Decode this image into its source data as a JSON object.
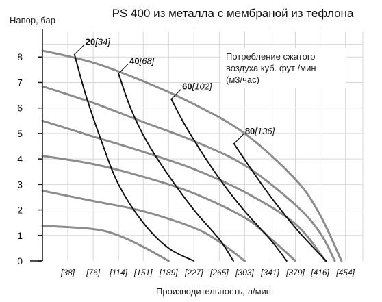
{
  "chart_data": {
    "type": "line",
    "title": "PS 400 из металла с мембраной из тефлона",
    "ylabel": "Напор, бар",
    "xlabel": "Производительность, л/мин",
    "ylim": [
      0,
      9
    ],
    "xlim": [
      0,
      480
    ],
    "grid": true,
    "yticks": [
      0,
      1,
      2,
      3,
      4,
      5,
      6,
      7,
      8
    ],
    "x_tick_values": [
      38,
      76,
      114,
      151,
      189,
      227,
      265,
      303,
      341,
      379,
      416,
      454
    ],
    "x_tick_labels": [
      "[38]",
      "[76]",
      "[114]",
      "[151]",
      "[189]",
      "[227]",
      "[265]",
      "[303]",
      "[341]",
      "[379]",
      "[416]",
      "[454]"
    ],
    "note_lines": [
      "Потребление сжатого",
      "воздуха куб. фут /мин",
      "(м3/час)"
    ],
    "pressure_curves": [
      {
        "points": [
          [
            0,
            8.25
          ],
          [
            76,
            7.78
          ],
          [
            151,
            7.05
          ],
          [
            227,
            6.15
          ],
          [
            303,
            5.0
          ],
          [
            379,
            3.2
          ],
          [
            416,
            1.8
          ],
          [
            448,
            0
          ]
        ]
      },
      {
        "points": [
          [
            0,
            6.85
          ],
          [
            76,
            6.2
          ],
          [
            151,
            5.45
          ],
          [
            227,
            4.7
          ],
          [
            303,
            3.75
          ],
          [
            379,
            2.2
          ],
          [
            416,
            1.1
          ],
          [
            438,
            0
          ]
        ]
      },
      {
        "points": [
          [
            0,
            5.5
          ],
          [
            76,
            4.88
          ],
          [
            151,
            4.28
          ],
          [
            227,
            3.6
          ],
          [
            303,
            2.7
          ],
          [
            379,
            1.45
          ],
          [
            424,
            0
          ]
        ]
      },
      {
        "points": [
          [
            0,
            4.12
          ],
          [
            76,
            3.8
          ],
          [
            151,
            3.3
          ],
          [
            227,
            2.65
          ],
          [
            303,
            1.7
          ],
          [
            341,
            0.9
          ],
          [
            379,
            0
          ]
        ]
      },
      {
        "points": [
          [
            0,
            2.75
          ],
          [
            76,
            2.35
          ],
          [
            151,
            1.95
          ],
          [
            227,
            1.3
          ],
          [
            265,
            0.75
          ],
          [
            303,
            0
          ]
        ]
      },
      {
        "points": [
          [
            0,
            1.38
          ],
          [
            76,
            1.25
          ],
          [
            114,
            1.0
          ],
          [
            151,
            0.55
          ],
          [
            189,
            0
          ]
        ]
      }
    ],
    "air_curves": [
      {
        "label_flow": "20",
        "label_m3": "[34]",
        "points": [
          [
            48,
            8.1
          ],
          [
            65,
            6.5
          ],
          [
            87,
            4.8
          ],
          [
            114,
            3.0
          ],
          [
            151,
            1.5
          ],
          [
            189,
            0.5
          ],
          [
            227,
            0
          ]
        ]
      },
      {
        "label_flow": "40",
        "label_m3": "[68]",
        "points": [
          [
            114,
            7.35
          ],
          [
            132,
            6.0
          ],
          [
            156,
            4.7
          ],
          [
            189,
            3.35
          ],
          [
            227,
            2.0
          ],
          [
            265,
            0.85
          ],
          [
            286,
            0
          ]
        ]
      },
      {
        "label_flow": "60",
        "label_m3": "[102]",
        "points": [
          [
            193,
            6.35
          ],
          [
            212,
            5.4
          ],
          [
            240,
            4.2
          ],
          [
            270,
            3.05
          ],
          [
            303,
            1.95
          ],
          [
            341,
            0.85
          ],
          [
            366,
            0
          ]
        ]
      },
      {
        "label_flow": "80",
        "label_m3": "[136]",
        "points": [
          [
            287,
            4.6
          ],
          [
            310,
            3.7
          ],
          [
            341,
            2.55
          ],
          [
            379,
            1.3
          ],
          [
            405,
            0.55
          ],
          [
            425,
            0
          ]
        ]
      }
    ]
  }
}
